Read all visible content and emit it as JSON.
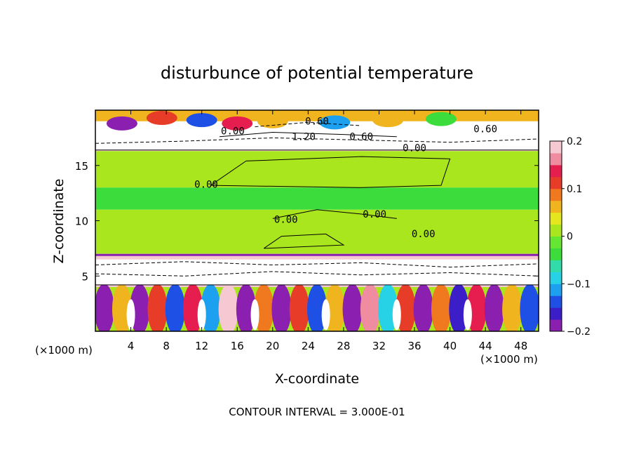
{
  "chart_data": {
    "type": "heatmap",
    "title": "disturbunce of potential temperature",
    "xlabel": "X-coordinate",
    "ylabel": "Z-coordinate",
    "x_unit_left": "(×1000 m)",
    "x_unit_right": "(×1000 m)",
    "xlim": [
      0,
      50
    ],
    "ylim": [
      0,
      20
    ],
    "x_ticks": [
      4,
      8,
      12,
      16,
      20,
      24,
      28,
      32,
      36,
      40,
      44,
      48
    ],
    "y_ticks": [
      5,
      10,
      15
    ],
    "colorbar": {
      "range": [
        -0.2,
        0.2
      ],
      "ticks": [
        {
          "value": 0.2,
          "label": "0.2"
        },
        {
          "value": 0.1,
          "label": "0.1"
        },
        {
          "value": 0,
          "label": "0"
        },
        {
          "value": -0.1,
          "label": "−0.1"
        },
        {
          "value": -0.2,
          "label": "−0.2"
        }
      ],
      "colors": [
        "#8a1fb0",
        "#3c1ec8",
        "#1e50e6",
        "#1ea0f0",
        "#28d2e6",
        "#32dcaa",
        "#3cdc3c",
        "#64e632",
        "#aae61e",
        "#e6e61e",
        "#f0b41e",
        "#f0781e",
        "#e63c28",
        "#e61e50",
        "#f08ca0",
        "#f5c8d2"
      ]
    },
    "bands": [
      {
        "z0": 17.5,
        "z1": 20,
        "value": 0.05,
        "description_value": "mixed"
      },
      {
        "z0": 16.3,
        "z1": 17.5,
        "value": 0.2
      },
      {
        "z0": 13,
        "z1": 16.3,
        "value": 0.02
      },
      {
        "z0": 11,
        "z1": 13,
        "value": -0.05
      },
      {
        "z0": 7,
        "z1": 11,
        "value": 0.02
      },
      {
        "z0": 4,
        "z1": 7,
        "value": 0.2
      },
      {
        "z0": 0,
        "z1": 4,
        "value": 0.0
      }
    ],
    "contour_labels": [
      {
        "x": 15.5,
        "z": 17.8,
        "text": "0.00"
      },
      {
        "x": 25,
        "z": 18.7,
        "text": "0.60"
      },
      {
        "x": 23.5,
        "z": 17.3,
        "text": "1.20"
      },
      {
        "x": 30,
        "z": 17.3,
        "text": "0.60"
      },
      {
        "x": 44,
        "z": 18.0,
        "text": "0.60"
      },
      {
        "x": 36,
        "z": 16.3,
        "text": "0.00"
      },
      {
        "x": 12.5,
        "z": 13.0,
        "text": "0.00"
      },
      {
        "x": 21.5,
        "z": 9.8,
        "text": "0.00"
      },
      {
        "x": 31.5,
        "z": 10.3,
        "text": "0.00"
      },
      {
        "x": 37,
        "z": 8.5,
        "text": "0.00"
      }
    ],
    "footer": "CONTOUR INTERVAL = 3.000E-01"
  }
}
